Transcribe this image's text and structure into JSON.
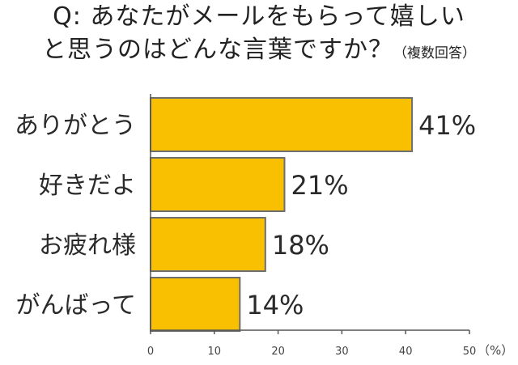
{
  "title": {
    "line1": "Q: あなたがメールをもらって嬉しい",
    "line2": "と思うのはどんな言葉ですか？",
    "note": "（複数回答）"
  },
  "colors": {
    "bar_fill": "#F8C000",
    "bar_stroke": "#6E6E6E",
    "axis": "#555555"
  },
  "chart_data": {
    "type": "bar",
    "orientation": "horizontal",
    "title": "Q: あなたがメールをもらって嬉しいと思うのはどんな言葉ですか？（複数回答）",
    "categories": [
      "ありがとう",
      "好きだよ",
      "お疲れ様",
      "がんばって"
    ],
    "values": [
      41,
      21,
      18,
      14
    ],
    "value_labels": [
      "41%",
      "21%",
      "18%",
      "14%"
    ],
    "xlim": [
      0,
      50
    ],
    "xticks": [
      0,
      10,
      20,
      30,
      40,
      50
    ],
    "x_unit": "（%）",
    "grid": false,
    "legend": "none"
  }
}
